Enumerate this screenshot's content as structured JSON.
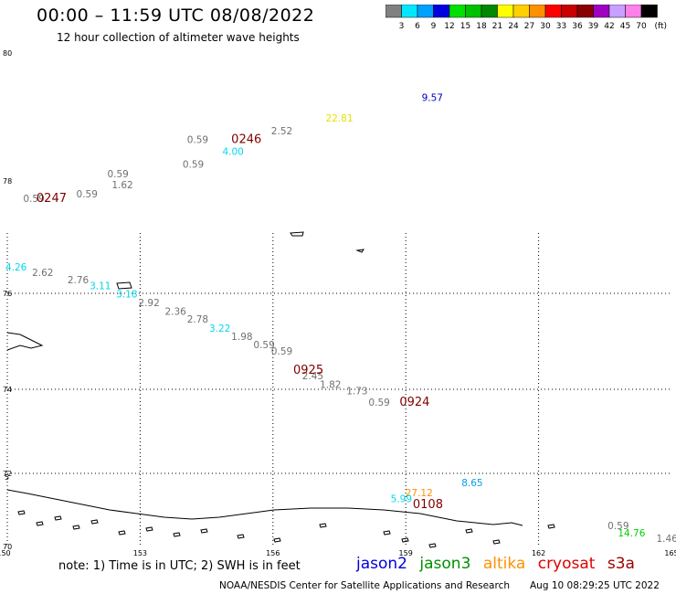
{
  "header": {
    "title": "00:00 – 11:59 UTC 08/08/2022",
    "subtitle": "12 hour collection of altimeter wave heights"
  },
  "legend": {
    "bins": [
      {
        "label": "3",
        "color": "#808080"
      },
      {
        "label": "6",
        "color": "#00e8ff"
      },
      {
        "label": "9",
        "color": "#00a0ff"
      },
      {
        "label": "12",
        "color": "#0000e0"
      },
      {
        "label": "15",
        "color": "#00e000"
      },
      {
        "label": "18",
        "color": "#00c000"
      },
      {
        "label": "21",
        "color": "#008800"
      },
      {
        "label": "24",
        "color": "#ffff00"
      },
      {
        "label": "27",
        "color": "#ffd000"
      },
      {
        "label": "30",
        "color": "#ff9000"
      },
      {
        "label": "33",
        "color": "#ff0000"
      },
      {
        "label": "36",
        "color": "#c80000"
      },
      {
        "label": "39",
        "color": "#880000"
      },
      {
        "label": "42",
        "color": "#a000c0"
      },
      {
        "label": "45",
        "color": "#c8a0ff"
      },
      {
        "label": "70",
        "color": "#ff80e8"
      },
      {
        "label": "",
        "color": "#000000"
      }
    ],
    "unit": "(ft)"
  },
  "axes": {
    "lat_labels": [
      "80",
      "78",
      "76",
      "74",
      "72",
      "70"
    ],
    "lon_labels": [
      "150",
      "153",
      "156",
      "159",
      "162",
      "165"
    ],
    "edge_label": "5"
  },
  "map_data": {
    "pass_times": [
      {
        "label": "0246",
        "lon": 155.4,
        "lat": 78.59
      },
      {
        "label": "0247",
        "lon": 151.0,
        "lat": 77.63
      },
      {
        "label": "0925",
        "lon": 156.8,
        "lat": 74.32
      },
      {
        "label": "0924",
        "lon": 159.2,
        "lat": 73.61
      },
      {
        "label": "0108",
        "lon": 159.5,
        "lat": 71.05
      }
    ],
    "wave_heights": [
      {
        "value": "9.57",
        "lon": 159.6,
        "lat": 79.25,
        "color": "#0000c0"
      },
      {
        "value": "22.81",
        "lon": 157.5,
        "lat": 78.93,
        "color": "#e8e000"
      },
      {
        "value": "2.52",
        "lon": 156.2,
        "lat": 78.73,
        "color": "#707070"
      },
      {
        "value": "0.59",
        "lon": 154.3,
        "lat": 78.59,
        "color": "#707070"
      },
      {
        "value": "4.00",
        "lon": 155.1,
        "lat": 78.41,
        "color": "#00d8f0"
      },
      {
        "value": "0.59",
        "lon": 154.2,
        "lat": 78.21,
        "color": "#707070"
      },
      {
        "value": "0.59",
        "lon": 152.5,
        "lat": 78.06,
        "color": "#707070"
      },
      {
        "value": "1.62",
        "lon": 152.6,
        "lat": 77.87,
        "color": "#707070"
      },
      {
        "value": "0.59",
        "lon": 151.8,
        "lat": 77.71,
        "color": "#707070"
      },
      {
        "value": "0.59",
        "lon": 150.6,
        "lat": 77.63,
        "color": "#707070"
      },
      {
        "value": "4.26",
        "lon": 150.2,
        "lat": 76.41,
        "color": "#00d8f0"
      },
      {
        "value": "2.62",
        "lon": 150.8,
        "lat": 76.31,
        "color": "#707070"
      },
      {
        "value": "2.76",
        "lon": 151.6,
        "lat": 76.18,
        "color": "#707070"
      },
      {
        "value": "3.11",
        "lon": 152.1,
        "lat": 76.07,
        "color": "#00d8f0"
      },
      {
        "value": "3.18",
        "lon": 152.7,
        "lat": 75.91,
        "color": "#00d8f0"
      },
      {
        "value": "2.92",
        "lon": 153.2,
        "lat": 75.73,
        "color": "#707070"
      },
      {
        "value": "2.36",
        "lon": 153.8,
        "lat": 75.55,
        "color": "#707070"
      },
      {
        "value": "2.78",
        "lon": 154.3,
        "lat": 75.39,
        "color": "#707070"
      },
      {
        "value": "3.22",
        "lon": 154.8,
        "lat": 75.2,
        "color": "#00d8f0"
      },
      {
        "value": "1.98",
        "lon": 155.3,
        "lat": 75.03,
        "color": "#707070"
      },
      {
        "value": "0.59",
        "lon": 155.8,
        "lat": 74.86,
        "color": "#707070"
      },
      {
        "value": "0.59",
        "lon": 156.2,
        "lat": 74.72,
        "color": "#707070"
      },
      {
        "value": "2.45",
        "lon": 156.9,
        "lat": 74.21,
        "color": "#707070"
      },
      {
        "value": "1.82",
        "lon": 157.3,
        "lat": 74.03,
        "color": "#707070"
      },
      {
        "value": "1.73",
        "lon": 157.9,
        "lat": 73.88,
        "color": "#707070"
      },
      {
        "value": "0.59",
        "lon": 158.4,
        "lat": 73.61,
        "color": "#707070"
      },
      {
        "value": "8.65",
        "lon": 160.5,
        "lat": 71.65,
        "color": "#00a0e8"
      },
      {
        "value": "27.12",
        "lon": 159.3,
        "lat": 71.38,
        "color": "#ff9000"
      },
      {
        "value": "5.99",
        "lon": 158.9,
        "lat": 71.21,
        "color": "#00d8f0"
      },
      {
        "value": "0.59",
        "lon": 163.8,
        "lat": 70.47,
        "color": "#707070"
      },
      {
        "value": "14.76",
        "lon": 164.1,
        "lat": 70.27,
        "color": "#00d000"
      },
      {
        "value": "1.46",
        "lon": 164.9,
        "lat": 70.12,
        "color": "#707070"
      }
    ]
  },
  "footer": {
    "note": "note:  1) Time is in UTC; 2) SWH is in feet",
    "satellites": [
      {
        "name": "jason2",
        "color": "#0000e0"
      },
      {
        "name": "jason3",
        "color": "#009000"
      },
      {
        "name": "altika",
        "color": "#ff9000"
      },
      {
        "name": "cryosat",
        "color": "#e00000"
      },
      {
        "name": "s3a",
        "color": "#a00000"
      }
    ],
    "credit": "NOAA/NESDIS Center for Satellite Applications and Research",
    "timestamp": "Aug 10 08:29:25 UTC 2022"
  }
}
